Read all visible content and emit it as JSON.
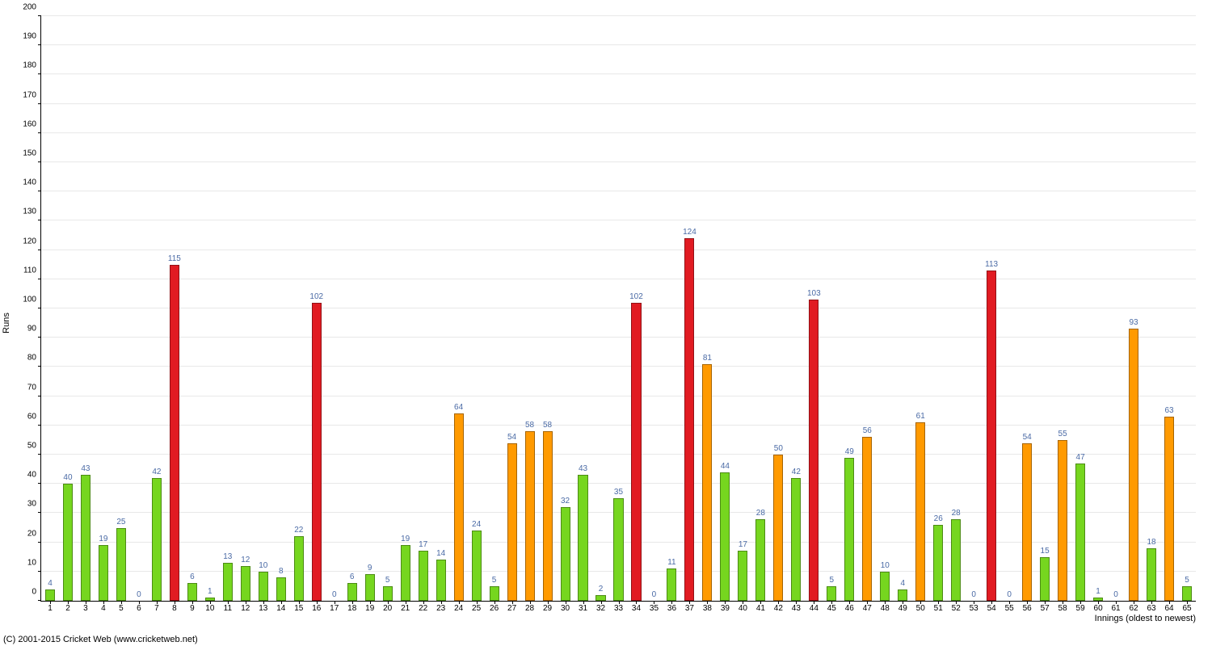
{
  "chart": {
    "type": "bar",
    "ylim": [
      0,
      200
    ],
    "ytick_step": 10,
    "ylabel": "Runs",
    "xlabel": "Innings (oldest to newest)",
    "background_color": "#ffffff",
    "grid_color": "#e8e8e8",
    "axis_color": "#000000",
    "bar_width_ratio": 0.55,
    "value_label_color": "#4a6aa5",
    "value_label_fontsize": 10,
    "tick_label_fontsize": 10,
    "axis_title_fontsize": 11,
    "colors": {
      "green": "#76d61f",
      "orange": "#ff9a00",
      "red": "#e11b22"
    },
    "copyright": "(C) 2001-2015 Cricket Web (www.cricketweb.net)",
    "data": [
      {
        "x": 1,
        "v": 4,
        "c": "green"
      },
      {
        "x": 2,
        "v": 40,
        "c": "green"
      },
      {
        "x": 3,
        "v": 43,
        "c": "green"
      },
      {
        "x": 4,
        "v": 19,
        "c": "green"
      },
      {
        "x": 5,
        "v": 25,
        "c": "green"
      },
      {
        "x": 6,
        "v": 0,
        "c": "green"
      },
      {
        "x": 7,
        "v": 42,
        "c": "green"
      },
      {
        "x": 8,
        "v": 115,
        "c": "red"
      },
      {
        "x": 9,
        "v": 6,
        "c": "green"
      },
      {
        "x": 10,
        "v": 1,
        "c": "green"
      },
      {
        "x": 11,
        "v": 13,
        "c": "green"
      },
      {
        "x": 12,
        "v": 12,
        "c": "green"
      },
      {
        "x": 13,
        "v": 10,
        "c": "green"
      },
      {
        "x": 14,
        "v": 8,
        "c": "green"
      },
      {
        "x": 15,
        "v": 22,
        "c": "green"
      },
      {
        "x": 16,
        "v": 102,
        "c": "red"
      },
      {
        "x": 17,
        "v": 0,
        "c": "green"
      },
      {
        "x": 18,
        "v": 6,
        "c": "green"
      },
      {
        "x": 19,
        "v": 9,
        "c": "green"
      },
      {
        "x": 20,
        "v": 5,
        "c": "green"
      },
      {
        "x": 21,
        "v": 19,
        "c": "green"
      },
      {
        "x": 22,
        "v": 17,
        "c": "green"
      },
      {
        "x": 23,
        "v": 14,
        "c": "green"
      },
      {
        "x": 24,
        "v": 64,
        "c": "orange"
      },
      {
        "x": 25,
        "v": 24,
        "c": "green"
      },
      {
        "x": 26,
        "v": 5,
        "c": "green"
      },
      {
        "x": 27,
        "v": 54,
        "c": "orange"
      },
      {
        "x": 28,
        "v": 58,
        "c": "orange"
      },
      {
        "x": 29,
        "v": 58,
        "c": "orange"
      },
      {
        "x": 30,
        "v": 32,
        "c": "green"
      },
      {
        "x": 31,
        "v": 43,
        "c": "green"
      },
      {
        "x": 32,
        "v": 2,
        "c": "green"
      },
      {
        "x": 33,
        "v": 35,
        "c": "green"
      },
      {
        "x": 34,
        "v": 102,
        "c": "red"
      },
      {
        "x": 35,
        "v": 0,
        "c": "green"
      },
      {
        "x": 36,
        "v": 11,
        "c": "green"
      },
      {
        "x": 37,
        "v": 124,
        "c": "red"
      },
      {
        "x": 38,
        "v": 81,
        "c": "orange"
      },
      {
        "x": 39,
        "v": 44,
        "c": "green"
      },
      {
        "x": 40,
        "v": 17,
        "c": "green"
      },
      {
        "x": 41,
        "v": 28,
        "c": "green"
      },
      {
        "x": 42,
        "v": 50,
        "c": "orange"
      },
      {
        "x": 43,
        "v": 42,
        "c": "green"
      },
      {
        "x": 44,
        "v": 103,
        "c": "red"
      },
      {
        "x": 45,
        "v": 5,
        "c": "green"
      },
      {
        "x": 46,
        "v": 49,
        "c": "green"
      },
      {
        "x": 47,
        "v": 56,
        "c": "orange"
      },
      {
        "x": 48,
        "v": 10,
        "c": "green"
      },
      {
        "x": 49,
        "v": 4,
        "c": "green"
      },
      {
        "x": 50,
        "v": 61,
        "c": "orange"
      },
      {
        "x": 51,
        "v": 26,
        "c": "green"
      },
      {
        "x": 52,
        "v": 28,
        "c": "green"
      },
      {
        "x": 53,
        "v": 0,
        "c": "green"
      },
      {
        "x": 54,
        "v": 113,
        "c": "red"
      },
      {
        "x": 55,
        "v": 0,
        "c": "green"
      },
      {
        "x": 56,
        "v": 54,
        "c": "orange"
      },
      {
        "x": 57,
        "v": 15,
        "c": "green"
      },
      {
        "x": 58,
        "v": 55,
        "c": "orange"
      },
      {
        "x": 59,
        "v": 47,
        "c": "green"
      },
      {
        "x": 60,
        "v": 1,
        "c": "green"
      },
      {
        "x": 61,
        "v": 0,
        "c": "green"
      },
      {
        "x": 62,
        "v": 93,
        "c": "orange"
      },
      {
        "x": 63,
        "v": 18,
        "c": "green"
      },
      {
        "x": 64,
        "v": 63,
        "c": "orange"
      },
      {
        "x": 65,
        "v": 5,
        "c": "green"
      }
    ]
  }
}
